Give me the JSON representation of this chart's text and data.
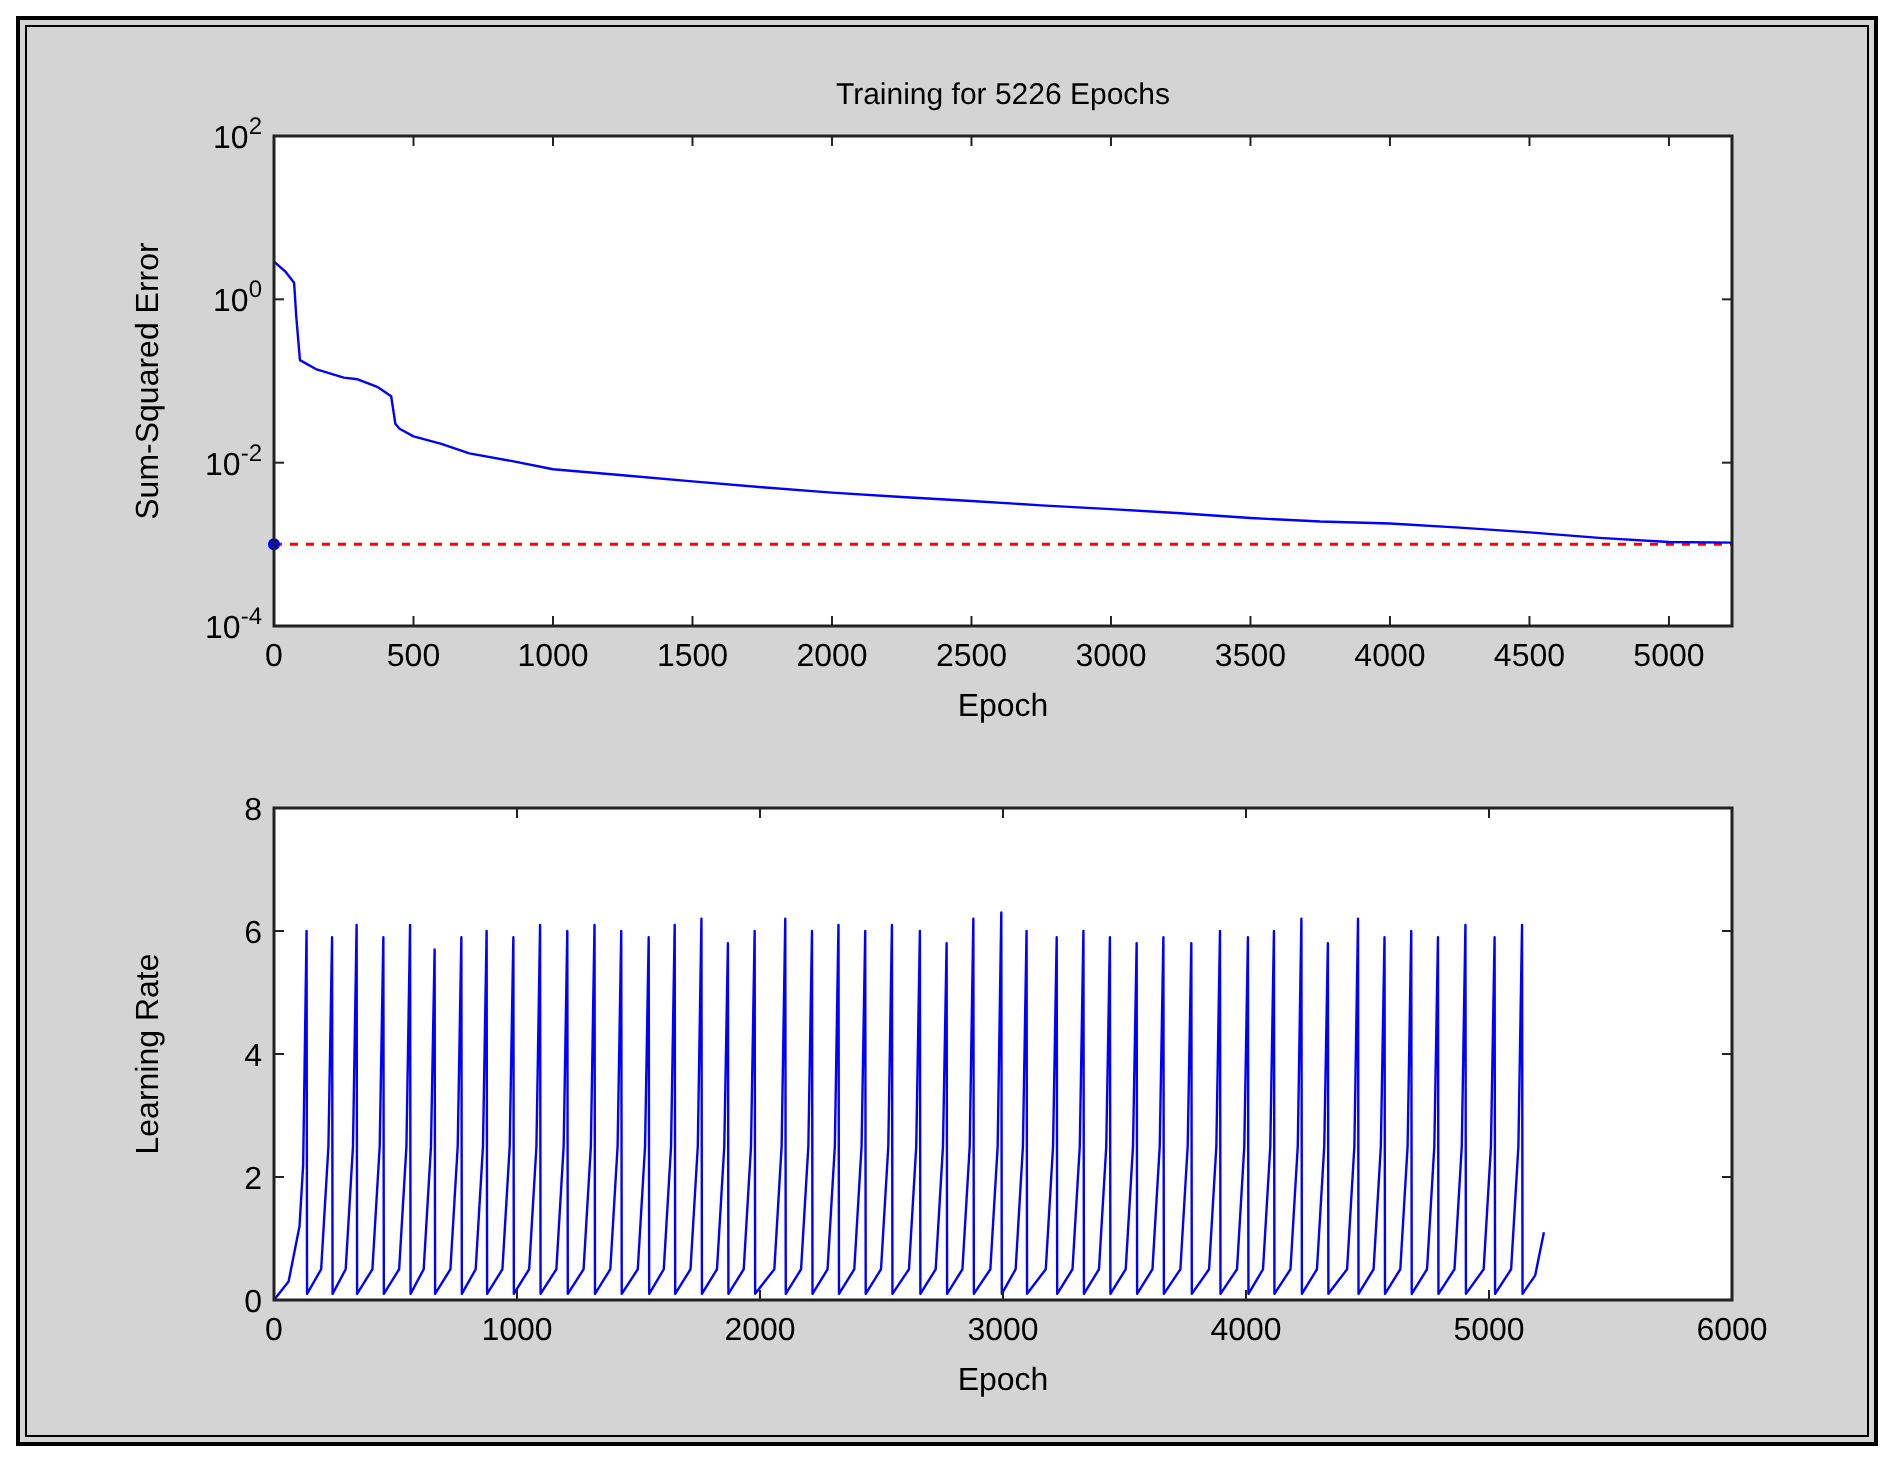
{
  "chart_data": [
    {
      "type": "line",
      "title": "Training for 5226 Epochs",
      "xlabel": "Epoch",
      "ylabel": "Sum-Squared Error",
      "log": "y",
      "xlim": [
        0,
        5226
      ],
      "xticks": [
        0,
        500,
        1000,
        1500,
        2000,
        2500,
        3000,
        3500,
        4000,
        4500,
        5000
      ],
      "ylim": [
        0.0001,
        100
      ],
      "yticks": [
        {
          "value": 100,
          "label": "10$^{2}$"
        },
        {
          "value": 1,
          "label": "10$^{0}$"
        },
        {
          "value": 0.01,
          "label": "10$^{-2}$"
        },
        {
          "value": 0.0001,
          "label": "10$^{-4}$"
        }
      ],
      "ref_lines": [
        {
          "axis": "y",
          "value": 0.001,
          "color": "#ff0000",
          "line_style": "dashed"
        }
      ],
      "series": [
        {
          "color": "#0000ff",
          "x": [
            0,
            40,
            72,
            80,
            93,
            150,
            250,
            300,
            370,
            420,
            435,
            450,
            500,
            600,
            700,
            850,
            1000,
            1250,
            1500,
            1750,
            2000,
            2250,
            2500,
            2750,
            3000,
            3250,
            3500,
            3750,
            4000,
            4250,
            4500,
            4750,
            5000,
            5226
          ],
          "values": [
            2.9,
            2.2,
            1.6,
            0.6,
            0.18,
            0.14,
            0.11,
            0.105,
            0.085,
            0.065,
            0.03,
            0.026,
            0.021,
            0.017,
            0.013,
            0.0105,
            0.0083,
            0.007,
            0.0059,
            0.005,
            0.0043,
            0.0038,
            0.0034,
            0.003,
            0.0027,
            0.0024,
            0.0021,
            0.0019,
            0.0018,
            0.0016,
            0.0014,
            0.0012,
            0.00107,
            0.00105
          ]
        },
        {
          "type": "scatter",
          "color": "#0000ff",
          "marker": "circle",
          "x": [
            0
          ],
          "values": [
            0.001
          ]
        }
      ]
    },
    {
      "type": "line",
      "xlabel": "Epoch",
      "ylabel": "Learning Rate",
      "xlim": [
        0,
        6000
      ],
      "xticks": [
        0,
        1000,
        2000,
        3000,
        4000,
        5000,
        6000
      ],
      "ylim": [
        0,
        8
      ],
      "yticks": [
        0,
        2,
        4,
        6,
        8
      ],
      "series": [
        {
          "color": "#0000ff",
          "x": [
            0,
            60,
            105,
            120,
            134,
            136,
            194,
            224,
            239,
            241,
            295,
            325,
            340,
            342,
            405,
            435,
            450,
            452,
            515,
            545,
            560,
            562,
            616,
            646,
            661,
            663,
            726,
            756,
            771,
            773,
            830,
            860,
            875,
            877,
            940,
            970,
            985,
            987,
            1050,
            1080,
            1095,
            1097,
            1162,
            1192,
            1207,
            1209,
            1274,
            1304,
            1319,
            1321,
            1384,
            1414,
            1429,
            1431,
            1497,
            1527,
            1542,
            1544,
            1604,
            1634,
            1649,
            1651,
            1714,
            1744,
            1759,
            1761,
            1823,
            1853,
            1868,
            1870,
            1933,
            1963,
            1978,
            1980,
            2059,
            2089,
            2104,
            2106,
            2169,
            2199,
            2214,
            2216,
            2278,
            2308,
            2323,
            2325,
            2388,
            2418,
            2433,
            2435,
            2498,
            2528,
            2543,
            2545,
            2613,
            2643,
            2658,
            2660,
            2723,
            2753,
            2768,
            2770,
            2833,
            2863,
            2878,
            2880,
            2948,
            2978,
            2993,
            2995,
            3052,
            3082,
            3097,
            3099,
            3176,
            3206,
            3221,
            3223,
            3286,
            3316,
            3331,
            3333,
            3395,
            3425,
            3440,
            3442,
            3505,
            3535,
            3550,
            3552,
            3615,
            3645,
            3660,
            3662,
            3730,
            3760,
            3775,
            3777,
            3848,
            3878,
            3893,
            3895,
            3963,
            3993,
            4008,
            4010,
            4070,
            4100,
            4115,
            4117,
            4183,
            4213,
            4228,
            4230,
            4292,
            4322,
            4337,
            4339,
            4416,
            4446,
            4461,
            4463,
            4525,
            4555,
            4570,
            4572,
            4635,
            4665,
            4680,
            4682,
            4745,
            4775,
            4790,
            4792,
            4858,
            4888,
            4903,
            4905,
            4978,
            5008,
            5023,
            5025,
            5091,
            5121,
            5136,
            5138,
            5190,
            5226
          ],
          "values": [
            0,
            0.3,
            1.2,
            2.2,
            6.0,
            0.1,
            0.5,
            2.5,
            5.9,
            0.1,
            0.5,
            2.5,
            6.1,
            0.1,
            0.5,
            2.5,
            5.9,
            0.1,
            0.5,
            2.5,
            6.1,
            0.1,
            0.5,
            2.5,
            5.7,
            0.1,
            0.5,
            2.5,
            5.9,
            0.1,
            0.5,
            2.5,
            6.0,
            0.1,
            0.5,
            2.5,
            5.9,
            0.1,
            0.5,
            2.5,
            6.1,
            0.1,
            0.5,
            2.5,
            6.0,
            0.1,
            0.5,
            2.5,
            6.1,
            0.1,
            0.5,
            2.5,
            6.0,
            0.1,
            0.5,
            2.5,
            5.9,
            0.1,
            0.5,
            2.5,
            6.1,
            0.1,
            0.5,
            2.5,
            6.2,
            0.1,
            0.5,
            2.5,
            5.8,
            0.1,
            0.5,
            2.5,
            6.0,
            0.1,
            0.5,
            2.5,
            6.2,
            0.1,
            0.5,
            2.5,
            6.0,
            0.1,
            0.5,
            2.5,
            6.1,
            0.1,
            0.5,
            2.5,
            6.0,
            0.1,
            0.5,
            2.5,
            6.1,
            0.1,
            0.5,
            2.5,
            6.0,
            0.1,
            0.5,
            2.5,
            5.8,
            0.1,
            0.5,
            2.5,
            6.2,
            0.1,
            0.5,
            2.5,
            6.3,
            0.1,
            0.5,
            2.5,
            6.0,
            0.1,
            0.5,
            2.5,
            5.9,
            0.1,
            0.5,
            2.5,
            6.0,
            0.1,
            0.5,
            2.5,
            5.9,
            0.1,
            0.5,
            2.5,
            5.8,
            0.1,
            0.5,
            2.5,
            5.9,
            0.1,
            0.5,
            2.5,
            5.8,
            0.1,
            0.5,
            2.5,
            6.0,
            0.1,
            0.5,
            2.5,
            5.9,
            0.1,
            0.5,
            2.5,
            6.0,
            0.1,
            0.5,
            2.5,
            6.2,
            0.1,
            0.5,
            2.5,
            5.8,
            0.1,
            0.5,
            2.5,
            6.2,
            0.1,
            0.5,
            2.5,
            5.9,
            0.1,
            0.5,
            2.5,
            6.0,
            0.1,
            0.5,
            2.5,
            5.9,
            0.1,
            0.5,
            2.5,
            6.1,
            0.1,
            0.5,
            2.5,
            5.9,
            0.1,
            0.5,
            2.5,
            6.1,
            0.1,
            0.4,
            1.1
          ]
        }
      ]
    }
  ]
}
